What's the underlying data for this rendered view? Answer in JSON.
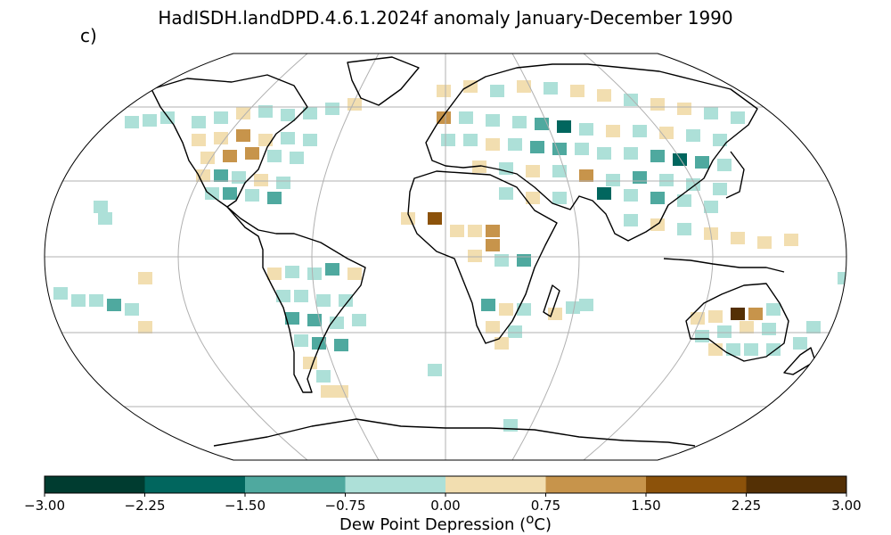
{
  "title": "HadISDH.landDPD.4.6.1.2024f anomaly January-December 1990",
  "panel_label": "c)",
  "colorbar": {
    "label_text": "Dew Point Depression (",
    "label_sup": "o",
    "label_unit": "C)",
    "ticks": [
      "−3.00",
      "−2.25",
      "−1.50",
      "−0.75",
      "0.00",
      "0.75",
      "1.50",
      "2.25",
      "3.00"
    ],
    "colors": [
      "#003c30",
      "#01665e",
      "#4fa99f",
      "#ade0d8",
      "#f2deb0",
      "#c7944b",
      "#8c520a",
      "#543005"
    ]
  },
  "map": {
    "projection": "Robinson",
    "graticule": true,
    "land_color": "#000000",
    "ocean_color": "#ffffff"
  }
}
